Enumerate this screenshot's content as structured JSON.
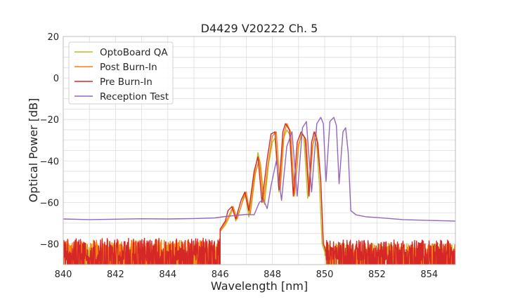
{
  "chart_data": {
    "type": "line",
    "title": "D4429 V20222 Ch. 5",
    "xlabel": "Wavelength [nm]",
    "ylabel": "Optical Power [dB]",
    "xlim": [
      840,
      855
    ],
    "ylim": [
      -90,
      20
    ],
    "xticks": [
      840,
      842,
      844,
      846,
      848,
      850,
      852,
      854
    ],
    "yticks": [
      20,
      0,
      -20,
      -40,
      -60,
      -80
    ],
    "xtick_labels": [
      "840",
      "842",
      "844",
      "846",
      "848",
      "850",
      "852",
      "854"
    ],
    "ytick_labels": [
      "20",
      "0",
      "−20",
      "−40",
      "−60",
      "−80"
    ],
    "grid": true,
    "legend_position": "top-left",
    "series": [
      {
        "name": "OptoBoard QA",
        "color": "#bcbd22",
        "noise_floor": {
          "x_range": [
            840,
            846.0
          ],
          "level": -86,
          "spread": 9
        },
        "noise_floor_right": {
          "x_range": [
            850.0,
            855
          ],
          "level": -86,
          "spread": 9
        },
        "points": [
          [
            846.0,
            -74
          ],
          [
            846.2,
            -71
          ],
          [
            846.4,
            -66
          ],
          [
            846.5,
            -63
          ],
          [
            846.6,
            -69
          ],
          [
            846.8,
            -62
          ],
          [
            846.95,
            -55
          ],
          [
            847.1,
            -67
          ],
          [
            847.3,
            -48
          ],
          [
            847.45,
            -36
          ],
          [
            847.55,
            -42
          ],
          [
            847.7,
            -61
          ],
          [
            847.85,
            -42
          ],
          [
            848.0,
            -31
          ],
          [
            848.1,
            -29
          ],
          [
            848.25,
            -55
          ],
          [
            848.4,
            -30
          ],
          [
            848.55,
            -25
          ],
          [
            848.7,
            -28
          ],
          [
            848.85,
            -57
          ],
          [
            849.0,
            -34
          ],
          [
            849.1,
            -27
          ],
          [
            849.2,
            -28
          ],
          [
            849.35,
            -58
          ],
          [
            849.5,
            -35
          ],
          [
            849.6,
            -29
          ],
          [
            849.7,
            -33
          ],
          [
            849.8,
            -52
          ],
          [
            849.9,
            -80
          ],
          [
            850.0,
            -84
          ]
        ]
      },
      {
        "name": "Post Burn-In",
        "color": "#ff7f0e",
        "noise_floor": {
          "x_range": [
            840,
            846.0
          ],
          "level": -85,
          "spread": 10
        },
        "noise_floor_right": {
          "x_range": [
            850.1,
            855
          ],
          "level": -86,
          "spread": 9
        },
        "points": [
          [
            846.0,
            -74
          ],
          [
            846.2,
            -70
          ],
          [
            846.35,
            -66
          ],
          [
            846.5,
            -62
          ],
          [
            846.65,
            -68
          ],
          [
            846.85,
            -60
          ],
          [
            847.0,
            -55
          ],
          [
            847.15,
            -66
          ],
          [
            847.35,
            -46
          ],
          [
            847.5,
            -39
          ],
          [
            847.65,
            -60
          ],
          [
            847.85,
            -40
          ],
          [
            848.0,
            -28
          ],
          [
            848.15,
            -26
          ],
          [
            848.3,
            -54
          ],
          [
            848.45,
            -27
          ],
          [
            848.55,
            -22
          ],
          [
            848.7,
            -26
          ],
          [
            848.85,
            -56
          ],
          [
            849.0,
            -32
          ],
          [
            849.15,
            -27
          ],
          [
            849.3,
            -30
          ],
          [
            849.4,
            -56
          ],
          [
            849.55,
            -32
          ],
          [
            849.65,
            -26
          ],
          [
            849.75,
            -32
          ],
          [
            849.85,
            -50
          ],
          [
            849.95,
            -80
          ],
          [
            850.1,
            -84
          ]
        ]
      },
      {
        "name": "Pre Burn-In",
        "color": "#d62728",
        "noise_floor": {
          "x_range": [
            840,
            846.0
          ],
          "level": -85,
          "spread": 11
        },
        "noise_floor_right": {
          "x_range": [
            850.05,
            855
          ],
          "level": -85,
          "spread": 10
        },
        "points": [
          [
            846.0,
            -73
          ],
          [
            846.2,
            -69
          ],
          [
            846.3,
            -64
          ],
          [
            846.45,
            -62
          ],
          [
            846.6,
            -68
          ],
          [
            846.8,
            -59
          ],
          [
            846.95,
            -55
          ],
          [
            847.1,
            -64
          ],
          [
            847.3,
            -45
          ],
          [
            847.45,
            -38
          ],
          [
            847.6,
            -60
          ],
          [
            847.8,
            -39
          ],
          [
            847.95,
            -27
          ],
          [
            848.1,
            -26
          ],
          [
            848.25,
            -54
          ],
          [
            848.4,
            -26
          ],
          [
            848.5,
            -22
          ],
          [
            848.65,
            -25
          ],
          [
            848.8,
            -57
          ],
          [
            848.95,
            -31
          ],
          [
            849.1,
            -26
          ],
          [
            849.25,
            -29
          ],
          [
            849.4,
            -57
          ],
          [
            849.5,
            -31
          ],
          [
            849.6,
            -26
          ],
          [
            849.72,
            -31
          ],
          [
            849.85,
            -50
          ],
          [
            849.95,
            -80
          ],
          [
            850.05,
            -84
          ]
        ]
      },
      {
        "name": "Reception Test",
        "color": "#9467bd",
        "points": [
          [
            840.0,
            -68
          ],
          [
            841.0,
            -68.3
          ],
          [
            842.0,
            -68.1
          ],
          [
            843.0,
            -67.9
          ],
          [
            844.0,
            -68
          ],
          [
            845.0,
            -67.8
          ],
          [
            845.8,
            -67.5
          ],
          [
            846.2,
            -66.8
          ],
          [
            846.6,
            -66.3
          ],
          [
            847.0,
            -65.8
          ],
          [
            847.3,
            -66
          ],
          [
            847.5,
            -60
          ],
          [
            847.65,
            -58.5
          ],
          [
            847.8,
            -63
          ],
          [
            847.95,
            -52
          ],
          [
            848.15,
            -40
          ],
          [
            848.35,
            -59
          ],
          [
            848.55,
            -33
          ],
          [
            848.75,
            -26
          ],
          [
            848.95,
            -57
          ],
          [
            849.15,
            -24
          ],
          [
            849.3,
            -21
          ],
          [
            849.5,
            -55
          ],
          [
            849.7,
            -22
          ],
          [
            849.85,
            -19
          ],
          [
            849.95,
            -22
          ],
          [
            850.05,
            -50
          ],
          [
            850.2,
            -21
          ],
          [
            850.35,
            -19
          ],
          [
            850.45,
            -23
          ],
          [
            850.55,
            -51
          ],
          [
            850.7,
            -26
          ],
          [
            850.8,
            -24
          ],
          [
            850.9,
            -36
          ],
          [
            851.0,
            -64
          ],
          [
            851.2,
            -66
          ],
          [
            851.6,
            -67
          ],
          [
            852.0,
            -67.3
          ],
          [
            853.0,
            -68.3
          ],
          [
            854.0,
            -68.7
          ],
          [
            855.0,
            -69
          ]
        ]
      }
    ]
  }
}
